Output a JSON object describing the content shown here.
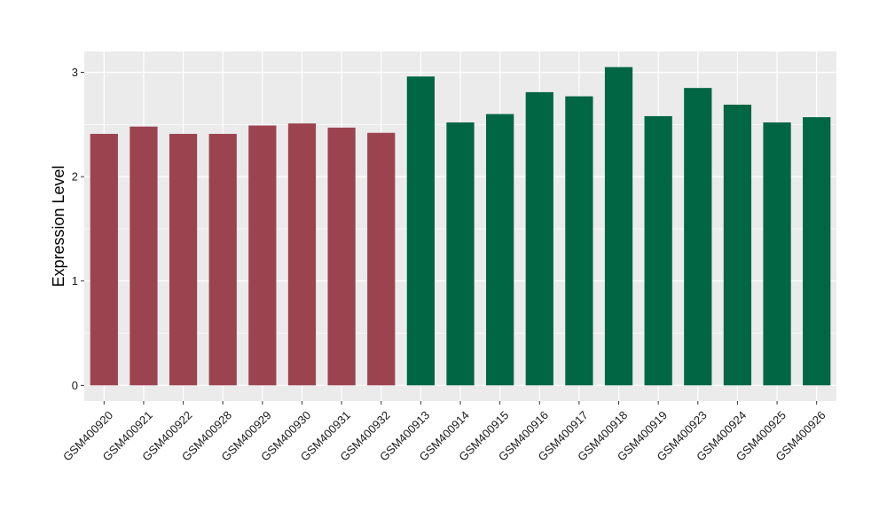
{
  "chart_data": {
    "type": "bar",
    "title": "",
    "xlabel": "",
    "ylabel": "Expression Level",
    "ylim": [
      -0.15,
      3.2
    ],
    "yticks": [
      0,
      1,
      2,
      3
    ],
    "grid": true,
    "legend": "none",
    "categories": [
      "GSM400920",
      "GSM400921",
      "GSM400922",
      "GSM400928",
      "GSM400929",
      "GSM400930",
      "GSM400931",
      "GSM400932",
      "GSM400913",
      "GSM400914",
      "GSM400915",
      "GSM400916",
      "GSM400917",
      "GSM400918",
      "GSM400919",
      "GSM400923",
      "GSM400924",
      "GSM400925",
      "GSM400926"
    ],
    "values": [
      2.41,
      2.48,
      2.41,
      2.41,
      2.49,
      2.51,
      2.47,
      2.42,
      2.96,
      2.52,
      2.6,
      2.81,
      2.77,
      3.05,
      2.58,
      2.85,
      2.69,
      2.52,
      2.57
    ],
    "group_index": [
      0,
      0,
      0,
      0,
      0,
      0,
      0,
      0,
      1,
      1,
      1,
      1,
      1,
      1,
      1,
      1,
      1,
      1,
      1
    ],
    "group_colors": [
      "#9B4450",
      "#006644"
    ]
  },
  "style": {
    "panel_background": "#EBEBEB",
    "grid_color": "#FFFFFF",
    "axis_text_color": "#1a1a1a"
  }
}
